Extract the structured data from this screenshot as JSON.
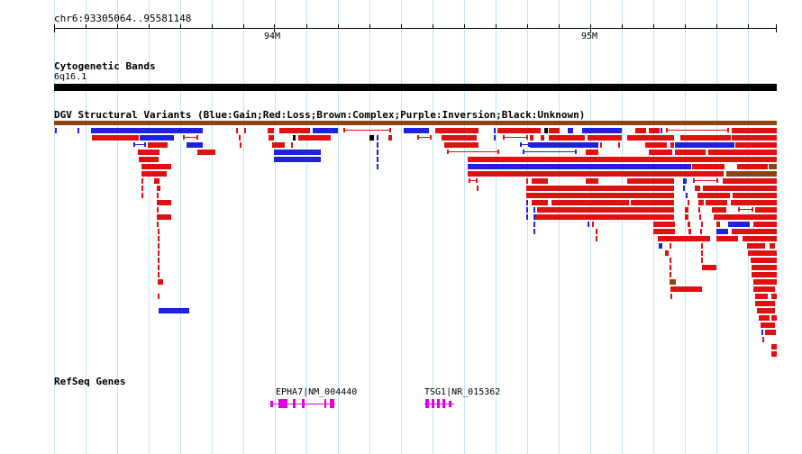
{
  "ruler": {
    "locus": "chr6:93305064..95581148",
    "ticks": [
      "94M",
      "95M"
    ]
  },
  "tracks": {
    "cytoband": {
      "title": "Cytogenetic Bands",
      "band": "6q16.1"
    },
    "dgv": {
      "title": "DGV Structural Variants (Blue:Gain;Red:Loss;Brown:Complex;Purple:Inversion;Black:Unknown)",
      "colors": {
        "gain": "#2020e0",
        "loss": "#e01010",
        "complex": "#8b4513",
        "inversion": "#a020f0",
        "unknown": "#000000"
      }
    },
    "refseq": {
      "title": "RefSeq Genes",
      "genes": [
        {
          "label": "EPHA7|NM_004440",
          "strand": "reverse"
        },
        {
          "label": "TSG1|NR_015362",
          "strand": "forward"
        }
      ],
      "color": "#e000e0"
    }
  }
}
